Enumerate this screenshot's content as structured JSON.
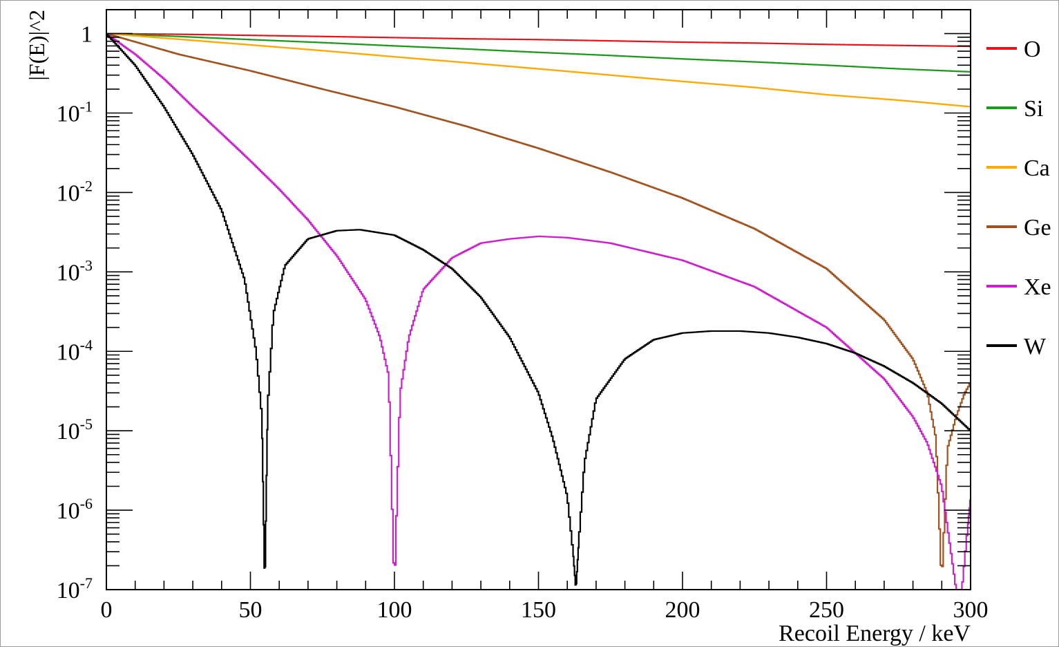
{
  "chart_data": {
    "type": "line",
    "xlabel": "Recoil Energy / keV",
    "ylabel": "|F(E)|^2",
    "xlim": [
      0,
      300
    ],
    "ylim": [
      1e-07,
      2
    ],
    "yscale": "log",
    "grid": false,
    "legend_position": "right",
    "x_ticks": [
      {
        "value": 0,
        "label": "0"
      },
      {
        "value": 50,
        "label": "50"
      },
      {
        "value": 100,
        "label": "100"
      },
      {
        "value": 150,
        "label": "150"
      },
      {
        "value": 200,
        "label": "200"
      },
      {
        "value": 250,
        "label": "250"
      },
      {
        "value": 300,
        "label": "300"
      }
    ],
    "y_ticks": [
      {
        "value": 1,
        "base": "1",
        "exp": ""
      },
      {
        "value": 0.1,
        "base": "10",
        "exp": "-1"
      },
      {
        "value": 0.01,
        "base": "10",
        "exp": "-2"
      },
      {
        "value": 0.001,
        "base": "10",
        "exp": "-3"
      },
      {
        "value": 0.0001,
        "base": "10",
        "exp": "-4"
      },
      {
        "value": 1e-05,
        "base": "10",
        "exp": "-5"
      },
      {
        "value": 1e-06,
        "base": "10",
        "exp": "-6"
      },
      {
        "value": 1e-07,
        "base": "10",
        "exp": "-7"
      }
    ],
    "series": [
      {
        "name": "O",
        "color": "#e8141c",
        "x": [
          0,
          25,
          50,
          75,
          100,
          125,
          150,
          175,
          200,
          225,
          250,
          275,
          300
        ],
        "y": [
          1,
          0.98,
          0.95,
          0.92,
          0.89,
          0.86,
          0.84,
          0.81,
          0.78,
          0.76,
          0.73,
          0.71,
          0.69
        ]
      },
      {
        "name": "Si",
        "color": "#1d9a1d",
        "x": [
          0,
          25,
          50,
          75,
          100,
          125,
          150,
          175,
          200,
          225,
          250,
          275,
          300
        ],
        "y": [
          1,
          0.92,
          0.84,
          0.77,
          0.7,
          0.64,
          0.58,
          0.53,
          0.48,
          0.44,
          0.4,
          0.36,
          0.33
        ]
      },
      {
        "name": "Ca",
        "color": "#ffaa00",
        "x": [
          0,
          25,
          50,
          75,
          100,
          125,
          150,
          175,
          200,
          225,
          250,
          275,
          300
        ],
        "y": [
          1,
          0.85,
          0.72,
          0.61,
          0.51,
          0.43,
          0.36,
          0.3,
          0.25,
          0.21,
          0.17,
          0.145,
          0.12
        ]
      },
      {
        "name": "Ge",
        "color": "#a0521e",
        "x": [
          0,
          25,
          50,
          75,
          100,
          125,
          150,
          175,
          200,
          225,
          250,
          270,
          280,
          285,
          288,
          290,
          292,
          295,
          298,
          300
        ],
        "y": [
          1,
          0.55,
          0.34,
          0.2,
          0.12,
          0.068,
          0.036,
          0.018,
          0.0085,
          0.0035,
          0.0011,
          0.00025,
          8e-05,
          3e-05,
          8e-06,
          1.2e-07,
          6e-06,
          1.5e-05,
          3e-05,
          4e-05
        ]
      },
      {
        "name": "Xe",
        "color": "#cc1fcc",
        "x": [
          0,
          10,
          20,
          30,
          40,
          50,
          60,
          70,
          80,
          90,
          95,
          98,
          100,
          102,
          105,
          110,
          120,
          130,
          140,
          150,
          160,
          175,
          200,
          225,
          250,
          270,
          280,
          285,
          290,
          295,
          297,
          299,
          300
        ],
        "y": [
          1,
          0.55,
          0.27,
          0.12,
          0.055,
          0.025,
          0.011,
          0.0045,
          0.0016,
          0.00045,
          0.00015,
          5e-05,
          1e-07,
          3e-05,
          0.00015,
          0.0006,
          0.0015,
          0.0023,
          0.0026,
          0.0028,
          0.0027,
          0.0023,
          0.0014,
          0.00065,
          0.0002,
          4.5e-05,
          1.5e-05,
          7e-06,
          2e-06,
          1e-07,
          1e-07,
          6e-07,
          1.5e-06
        ]
      },
      {
        "name": "W",
        "color": "#000000",
        "x": [
          0,
          10,
          20,
          30,
          40,
          48,
          52,
          54,
          55,
          56,
          58,
          62,
          70,
          80,
          88,
          100,
          110,
          120,
          130,
          140,
          150,
          155,
          160,
          162,
          163,
          164,
          166,
          170,
          180,
          190,
          200,
          210,
          220,
          230,
          240,
          250,
          260,
          270,
          280,
          290,
          300
        ],
        "y": [
          1,
          0.4,
          0.12,
          0.03,
          0.006,
          0.0008,
          0.0001,
          1.5e-05,
          1e-07,
          2e-05,
          0.0003,
          0.0012,
          0.0026,
          0.0033,
          0.0034,
          0.0029,
          0.0019,
          0.0011,
          0.00048,
          0.00015,
          3e-05,
          8e-06,
          1.5e-06,
          3e-07,
          1e-07,
          4e-07,
          4e-06,
          2.5e-05,
          8e-05,
          0.00014,
          0.00017,
          0.00018,
          0.00018,
          0.00017,
          0.00015,
          0.000125,
          9.5e-05,
          6.5e-05,
          4e-05,
          2.2e-05,
          1e-05
        ]
      }
    ]
  }
}
